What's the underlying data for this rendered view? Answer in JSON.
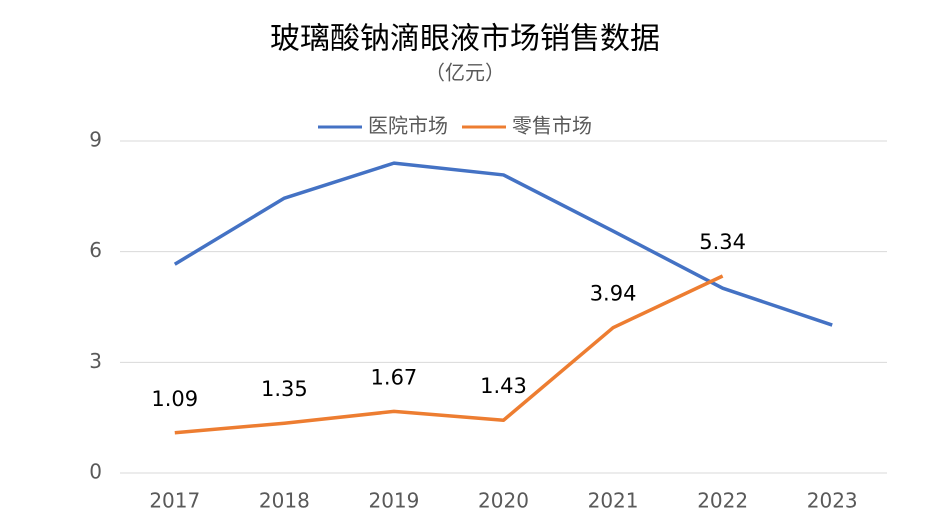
{
  "chart_data": {
    "type": "line",
    "title": "玻璃酸钠滴眼液市场销售数据",
    "subtitle": "（亿元）",
    "categories": [
      "2017",
      "2018",
      "2019",
      "2020",
      "2021",
      "2022",
      "2023"
    ],
    "series": [
      {
        "name": "医院市场",
        "color": "#4472c4",
        "values": [
          5.66,
          7.45,
          8.4,
          8.08,
          6.56,
          5.01,
          4.01
        ],
        "data_labels": false
      },
      {
        "name": "零售市场",
        "color": "#ed7d31",
        "values": [
          1.09,
          1.35,
          1.67,
          1.43,
          3.94,
          5.34,
          null
        ],
        "data_labels": true
      }
    ],
    "ylim": [
      0,
      9
    ],
    "yticks": [
      0,
      3,
      6,
      9
    ],
    "grid": true,
    "legend": "top"
  }
}
